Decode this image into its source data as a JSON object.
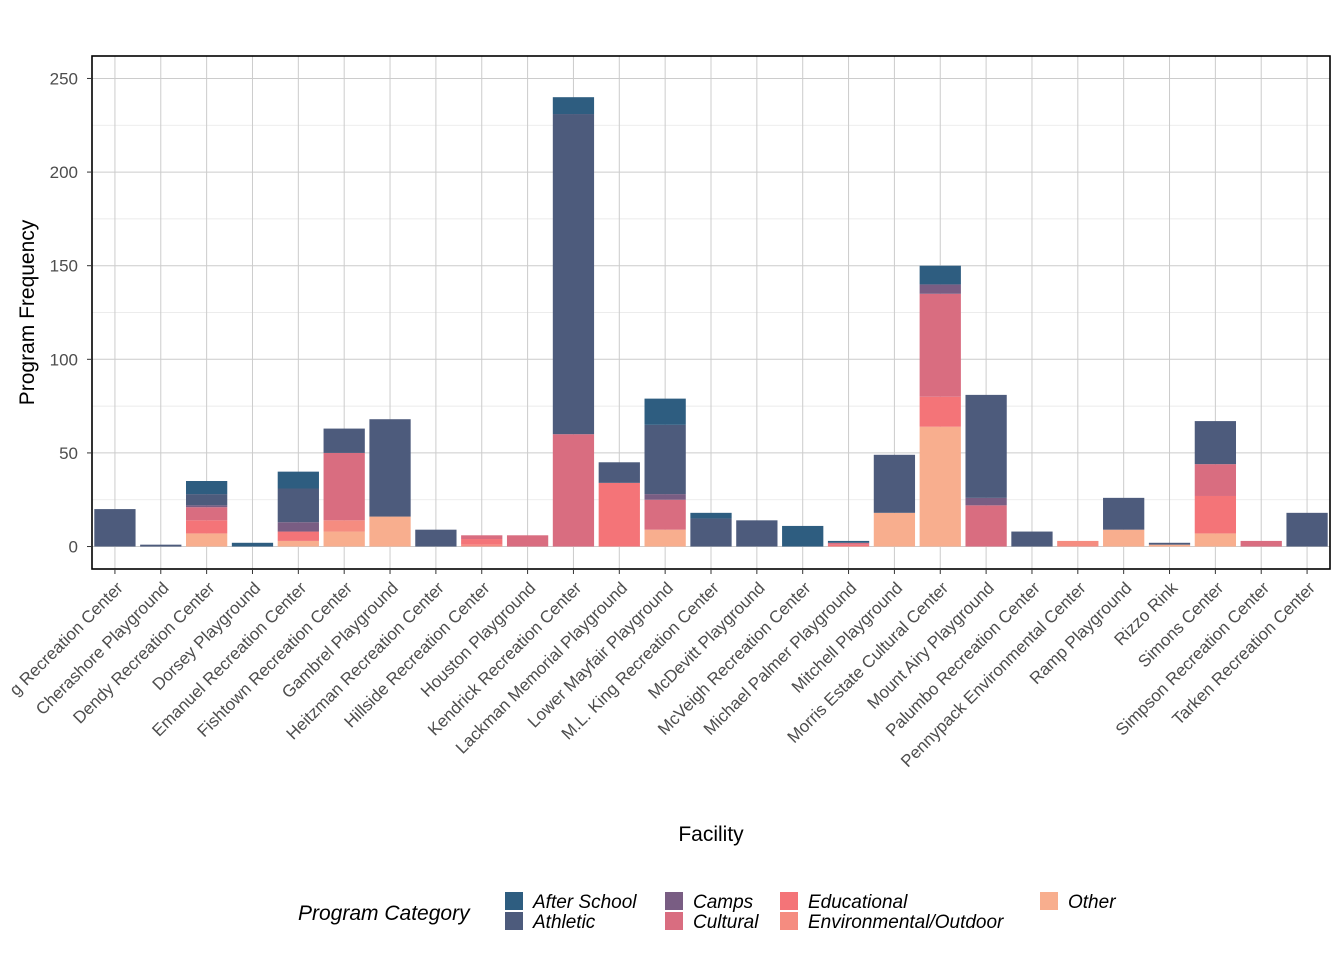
{
  "chart_data": {
    "type": "bar",
    "stacked": true,
    "xlabel": "Facility",
    "ylabel": "Program Frequency",
    "ylim": [
      -12,
      262
    ],
    "yticks": [
      0,
      50,
      100,
      150,
      200,
      250
    ],
    "grid": true,
    "legend_position": "bottom",
    "legend_title": "Program Category",
    "categories": [
      "Carousel House / Belfield Recreation Center",
      "Cherashore Playground",
      "Dendy Recreation Center",
      "Dorsey Playground",
      "Emanuel Recreation Center",
      "Fishtown Recreation Center",
      "Gambrel Playground",
      "Heitzman Recreation Center",
      "Hillside Recreation Center",
      "Houston Playground",
      "Kendrick Recreation Center",
      "Lackman Memorial Playground",
      "Lower Mayfair Playground",
      "M.L. King Recreation Center",
      "McDevitt Playground",
      "McVeigh Recreation Center",
      "Michael Palmer Playground",
      "Mitchell Playground",
      "Morris Estate Cultural Center",
      "Mount Airy Playground",
      "Palumbo Recreation Center",
      "Pennypack Environmental Center",
      "Ramp Playground",
      "Rizzo Rink",
      "Simons Center",
      "Simpson Recreation Center",
      "Tarken Recreation Center"
    ],
    "tick_labels": [
      "g Recreation Center",
      "Cherashore Playground",
      "Dendy Recreation Center",
      "Dorsey Playground",
      "Emanuel Recreation Center",
      "Fishtown Recreation Center",
      "Gambrel Playground",
      "Heitzman Recreation Center",
      "Hillside Recreation Center",
      "Houston Playground",
      "Kendrick Recreation Center",
      "Lackman Memorial Playground",
      "Lower Mayfair Playground",
      "M.L. King Recreation Center",
      "McDevitt Playground",
      "McVeigh Recreation Center",
      "Michael Palmer Playground",
      "Mitchell Playground",
      "Morris Estate Cultural Center",
      "Mount Airy Playground",
      "Palumbo Recreation Center",
      "Pennypack Environmental Center",
      "Ramp Playground",
      "Rizzo Rink",
      "Simons Center",
      "Simpson Recreation Center",
      "Tarken Recreation Center"
    ],
    "series": [
      {
        "name": "Other",
        "color": "#F8AE8E",
        "values": [
          0,
          0,
          7,
          0,
          3,
          8,
          16,
          0,
          0,
          0,
          0,
          0,
          9,
          0,
          0,
          0,
          0,
          18,
          64,
          0,
          0,
          0,
          9,
          1,
          7,
          0,
          0
        ]
      },
      {
        "name": "Environmental/Outdoor",
        "color": "#F58C80",
        "values": [
          0,
          0,
          0,
          0,
          0,
          6,
          0,
          0,
          1,
          0,
          0,
          0,
          0,
          0,
          0,
          0,
          0,
          0,
          0,
          0,
          0,
          3,
          0,
          0,
          0,
          0,
          0
        ]
      },
      {
        "name": "Educational",
        "color": "#F47478",
        "values": [
          0,
          0,
          7,
          0,
          5,
          0,
          0,
          0,
          3,
          0,
          0,
          34,
          0,
          0,
          0,
          0,
          1,
          0,
          16,
          0,
          0,
          0,
          0,
          0,
          20,
          0,
          0
        ]
      },
      {
        "name": "Cultural",
        "color": "#D96D80",
        "values": [
          0,
          0,
          7,
          0,
          0,
          36,
          0,
          0,
          2,
          6,
          60,
          0,
          16,
          0,
          0,
          0,
          1,
          0,
          55,
          22,
          0,
          0,
          0,
          0,
          17,
          3,
          0
        ]
      },
      {
        "name": "Camps",
        "color": "#795D83",
        "values": [
          0,
          0,
          1,
          0,
          5,
          0,
          0,
          0,
          0,
          0,
          0,
          0,
          3,
          0,
          0,
          0,
          0,
          0,
          5,
          4,
          0,
          0,
          0,
          0,
          0,
          0,
          0
        ]
      },
      {
        "name": "Athletic",
        "color": "#4D5B7C",
        "values": [
          20,
          1,
          6,
          0,
          18,
          13,
          52,
          9,
          0,
          0,
          171,
          11,
          37,
          15,
          14,
          0,
          0,
          31,
          0,
          55,
          8,
          0,
          17,
          1,
          23,
          0,
          18
        ]
      },
      {
        "name": "After School",
        "color": "#2E5D80",
        "values": [
          0,
          0,
          7,
          2,
          9,
          0,
          0,
          0,
          0,
          0,
          9,
          0,
          14,
          3,
          0,
          11,
          1,
          0,
          10,
          0,
          0,
          0,
          0,
          0,
          0,
          0,
          0
        ]
      }
    ],
    "legend_entries": [
      "After School",
      "Athletic",
      "Camps",
      "Cultural",
      "Educational",
      "Environmental/Outdoor",
      "Other"
    ]
  }
}
